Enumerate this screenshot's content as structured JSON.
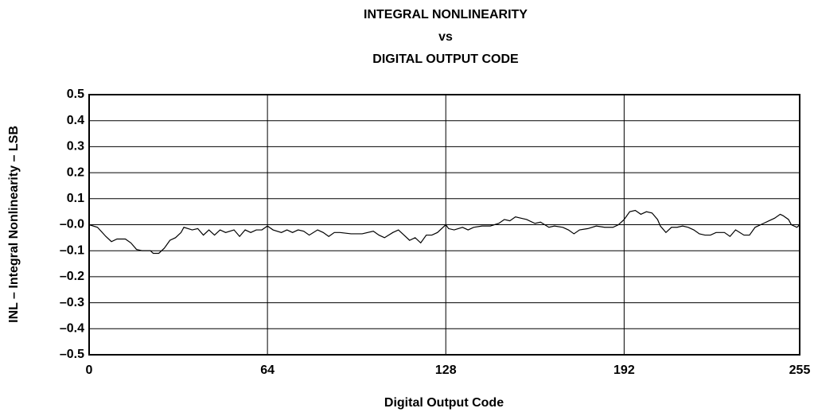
{
  "chart_data": {
    "type": "line",
    "title": [
      "INTEGRAL NONLINEARITY",
      "vs",
      "DIGITAL OUTPUT CODE"
    ],
    "x_label": "Digital Output Code",
    "y_label": "INL – Integral Nonlinearity – LSB",
    "xlim": [
      0,
      255
    ],
    "xticks": [
      0,
      64,
      128,
      192,
      255
    ],
    "ylim": [
      -0.5,
      0.5
    ],
    "yticks": [
      0.5,
      0.4,
      0.3,
      0.2,
      0.1,
      {
        "value": 0,
        "label": "–0.0"
      },
      {
        "value": -0.1,
        "label": "–0.1"
      },
      {
        "value": -0.2,
        "label": "–0.2"
      },
      {
        "value": -0.3,
        "label": "–0.3"
      },
      {
        "value": -0.4,
        "label": "–0.4"
      },
      {
        "value": -0.5,
        "label": "–0.5"
      }
    ],
    "grid": true,
    "series": [
      {
        "color": "#000000",
        "x": [
          0,
          3,
          6,
          8,
          10,
          13,
          15,
          17,
          19,
          22,
          23,
          25,
          27,
          29,
          31,
          33,
          34,
          37,
          39,
          41,
          43,
          45,
          47,
          49,
          52,
          54,
          56,
          58,
          60,
          62,
          64,
          66,
          69,
          71,
          73,
          75,
          77,
          79,
          82,
          84,
          86,
          88,
          90,
          94,
          98,
          102,
          104,
          106,
          109,
          111,
          113,
          115,
          117,
          119,
          121,
          123,
          125,
          128,
          129,
          131,
          134,
          136,
          138,
          141,
          144,
          147,
          149,
          151,
          153,
          155,
          157,
          160,
          162,
          165,
          167,
          170,
          172,
          174,
          176,
          179,
          182,
          185,
          188,
          190,
          192,
          194,
          196,
          198,
          200,
          202,
          204,
          205,
          207,
          209,
          211,
          213,
          215,
          217,
          219,
          221,
          223,
          225,
          228,
          230,
          232,
          235,
          237,
          239,
          242,
          244,
          246,
          248,
          249,
          251,
          252,
          254,
          255
        ],
        "values": [
          0,
          -0.01,
          -0.045,
          -0.065,
          -0.055,
          -0.055,
          -0.07,
          -0.095,
          -0.1,
          -0.1,
          -0.11,
          -0.11,
          -0.09,
          -0.06,
          -0.05,
          -0.03,
          -0.01,
          -0.02,
          -0.015,
          -0.04,
          -0.02,
          -0.04,
          -0.02,
          -0.03,
          -0.02,
          -0.045,
          -0.02,
          -0.03,
          -0.02,
          -0.02,
          -0.005,
          -0.02,
          -0.03,
          -0.02,
          -0.03,
          -0.02,
          -0.025,
          -0.04,
          -0.02,
          -0.03,
          -0.045,
          -0.03,
          -0.03,
          -0.035,
          -0.035,
          -0.025,
          -0.04,
          -0.05,
          -0.03,
          -0.02,
          -0.04,
          -0.06,
          -0.05,
          -0.07,
          -0.04,
          -0.04,
          -0.03,
          0,
          -0.015,
          -0.02,
          -0.01,
          -0.02,
          -0.01,
          -0.005,
          -0.005,
          0.005,
          0.02,
          0.015,
          0.03,
          0.025,
          0.02,
          0.005,
          0.01,
          -0.01,
          -0.005,
          -0.01,
          -0.02,
          -0.035,
          -0.02,
          -0.015,
          -0.005,
          -0.01,
          -0.01,
          0,
          0.02,
          0.05,
          0.055,
          0.04,
          0.05,
          0.045,
          0.02,
          -0.005,
          -0.03,
          -0.01,
          -0.01,
          -0.005,
          -0.01,
          -0.02,
          -0.035,
          -0.04,
          -0.04,
          -0.03,
          -0.03,
          -0.045,
          -0.02,
          -0.04,
          -0.04,
          -0.01,
          0.005,
          0.015,
          0.025,
          0.04,
          0.035,
          0.02,
          0,
          -0.01,
          0
        ]
      }
    ]
  }
}
